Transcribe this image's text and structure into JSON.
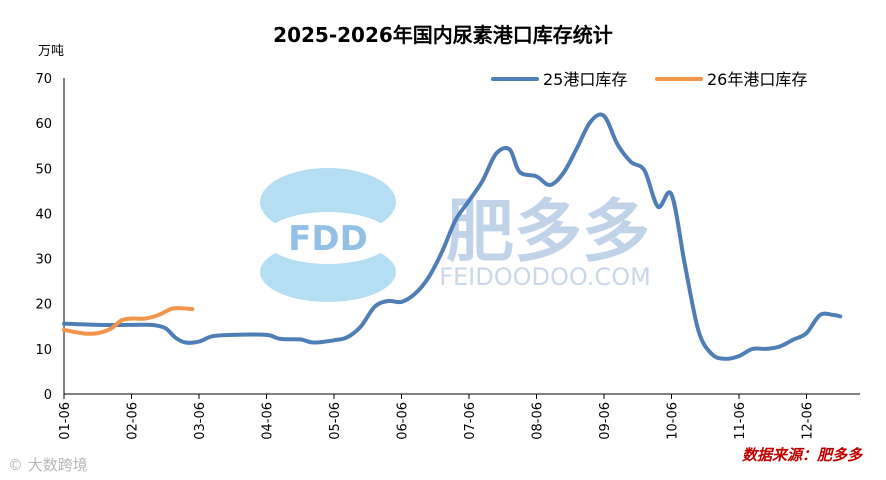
{
  "chart_data": {
    "type": "line",
    "title": "2025-2026年国内尿素港口库存统计",
    "ylabel": "万吨",
    "xlabel": "",
    "ylim": [
      0,
      70
    ],
    "yticks": [
      0,
      10,
      20,
      30,
      40,
      50,
      60,
      70
    ],
    "xticks": [
      "01-06",
      "02-06",
      "03-06",
      "04-06",
      "05-06",
      "06-06",
      "07-06",
      "08-06",
      "09-06",
      "10-06",
      "11-06",
      "12-06"
    ],
    "grid": false,
    "legend_position": "top-right",
    "series": [
      {
        "name": "25港口库存",
        "color": "#4f7db5",
        "points": [
          [
            0,
            15.6
          ],
          [
            0.5,
            15.3
          ],
          [
            1,
            15.3
          ],
          [
            1.3,
            15.3
          ],
          [
            1.5,
            14.6
          ],
          [
            1.65,
            12.5
          ],
          [
            1.8,
            11.4
          ],
          [
            2.0,
            11.6
          ],
          [
            2.2,
            12.8
          ],
          [
            2.5,
            13.1
          ],
          [
            3.0,
            13.1
          ],
          [
            3.2,
            12.2
          ],
          [
            3.5,
            12.1
          ],
          [
            3.7,
            11.4
          ],
          [
            4.0,
            11.9
          ],
          [
            4.2,
            12.6
          ],
          [
            4.4,
            15.0
          ],
          [
            4.6,
            19.3
          ],
          [
            4.8,
            20.6
          ],
          [
            5.0,
            20.4
          ],
          [
            5.2,
            22.2
          ],
          [
            5.4,
            25.8
          ],
          [
            5.6,
            31.5
          ],
          [
            5.8,
            38.5
          ],
          [
            6.0,
            42.8
          ],
          [
            6.2,
            47.2
          ],
          [
            6.4,
            53.2
          ],
          [
            6.6,
            54.2
          ],
          [
            6.75,
            49.2
          ],
          [
            7.0,
            48.2
          ],
          [
            7.2,
            46.3
          ],
          [
            7.4,
            49.0
          ],
          [
            7.6,
            54.5
          ],
          [
            7.8,
            60.3
          ],
          [
            8.0,
            61.6
          ],
          [
            8.2,
            55.3
          ],
          [
            8.4,
            51.4
          ],
          [
            8.6,
            49.5
          ],
          [
            8.8,
            41.5
          ],
          [
            9.0,
            44.2
          ],
          [
            9.2,
            28.5
          ],
          [
            9.4,
            14.0
          ],
          [
            9.6,
            8.8
          ],
          [
            9.8,
            7.8
          ],
          [
            10.0,
            8.4
          ],
          [
            10.2,
            10.0
          ],
          [
            10.4,
            10.0
          ],
          [
            10.6,
            10.5
          ],
          [
            10.8,
            12.0
          ],
          [
            11.0,
            13.5
          ],
          [
            11.2,
            17.5
          ],
          [
            11.4,
            17.5
          ],
          [
            11.5,
            17.2
          ]
        ]
      },
      {
        "name": "26年港口库存",
        "color": "#f0954a",
        "points": [
          [
            0,
            14.2
          ],
          [
            0.3,
            13.4
          ],
          [
            0.5,
            13.5
          ],
          [
            0.7,
            14.5
          ],
          [
            0.85,
            16.3
          ],
          [
            1.0,
            16.7
          ],
          [
            1.2,
            16.7
          ],
          [
            1.4,
            17.5
          ],
          [
            1.6,
            18.9
          ],
          [
            1.75,
            19.0
          ],
          [
            1.9,
            18.8
          ]
        ]
      }
    ],
    "source": "数据来源：肥多多"
  },
  "watermark": {
    "logo_text": "FDD",
    "brand_cn": "肥多多",
    "brand_url": "FEIDOODOO.COM"
  },
  "corner_mark": "© 大数跨境"
}
